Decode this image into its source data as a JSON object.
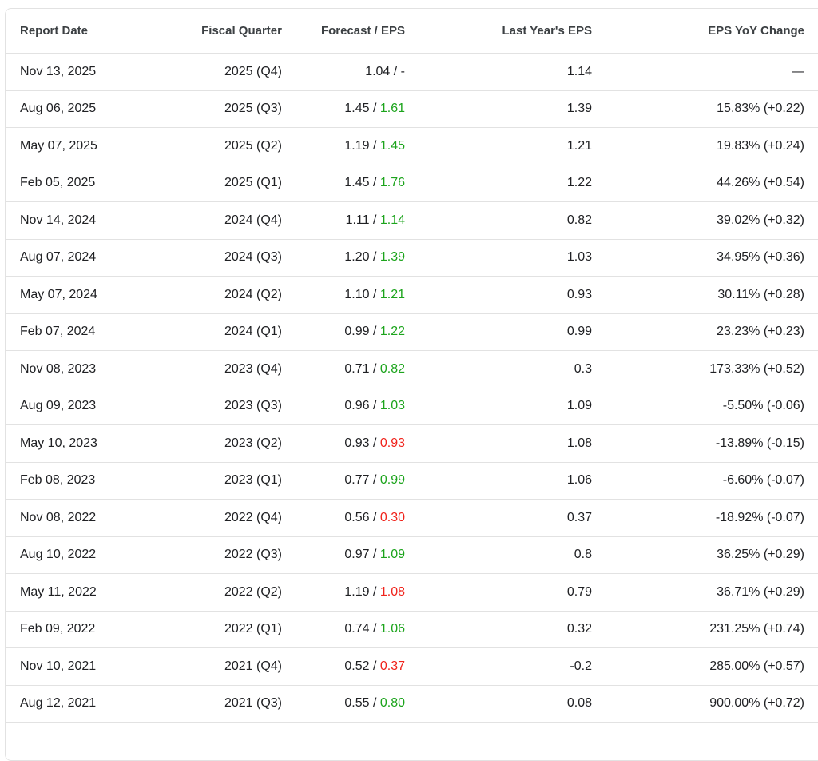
{
  "colors": {
    "beat": "#1ca41c",
    "miss": "#f0231b",
    "neutral": "#202124",
    "header_text": "#3c4043",
    "body_text": "#202124",
    "divider": "#e2e2e2",
    "background": "#ffffff"
  },
  "format": {
    "forecast_separator": " / "
  },
  "chart_data": {
    "type": "table",
    "columns": [
      "Report Date",
      "Fiscal Quarter",
      "Forecast / EPS",
      "Last Year's EPS",
      "EPS YoY Change"
    ],
    "rows": [
      {
        "report_date": "Nov 13, 2025",
        "fiscal_quarter": "2025 (Q4)",
        "forecast": "1.04",
        "eps": "-",
        "eps_status": "none",
        "last_year_eps": "1.14",
        "yoy_change": "—"
      },
      {
        "report_date": "Aug 06, 2025",
        "fiscal_quarter": "2025 (Q3)",
        "forecast": "1.45",
        "eps": "1.61",
        "eps_status": "beat",
        "last_year_eps": "1.39",
        "yoy_change": "15.83% (+0.22)"
      },
      {
        "report_date": "May 07, 2025",
        "fiscal_quarter": "2025 (Q2)",
        "forecast": "1.19",
        "eps": "1.45",
        "eps_status": "beat",
        "last_year_eps": "1.21",
        "yoy_change": "19.83% (+0.24)"
      },
      {
        "report_date": "Feb 05, 2025",
        "fiscal_quarter": "2025 (Q1)",
        "forecast": "1.45",
        "eps": "1.76",
        "eps_status": "beat",
        "last_year_eps": "1.22",
        "yoy_change": "44.26% (+0.54)"
      },
      {
        "report_date": "Nov 14, 2024",
        "fiscal_quarter": "2024 (Q4)",
        "forecast": "1.11",
        "eps": "1.14",
        "eps_status": "beat",
        "last_year_eps": "0.82",
        "yoy_change": "39.02% (+0.32)"
      },
      {
        "report_date": "Aug 07, 2024",
        "fiscal_quarter": "2024 (Q3)",
        "forecast": "1.20",
        "eps": "1.39",
        "eps_status": "beat",
        "last_year_eps": "1.03",
        "yoy_change": "34.95% (+0.36)"
      },
      {
        "report_date": "May 07, 2024",
        "fiscal_quarter": "2024 (Q2)",
        "forecast": "1.10",
        "eps": "1.21",
        "eps_status": "beat",
        "last_year_eps": "0.93",
        "yoy_change": "30.11% (+0.28)"
      },
      {
        "report_date": "Feb 07, 2024",
        "fiscal_quarter": "2024 (Q1)",
        "forecast": "0.99",
        "eps": "1.22",
        "eps_status": "beat",
        "last_year_eps": "0.99",
        "yoy_change": "23.23% (+0.23)"
      },
      {
        "report_date": "Nov 08, 2023",
        "fiscal_quarter": "2023 (Q4)",
        "forecast": "0.71",
        "eps": "0.82",
        "eps_status": "beat",
        "last_year_eps": "0.3",
        "yoy_change": "173.33% (+0.52)"
      },
      {
        "report_date": "Aug 09, 2023",
        "fiscal_quarter": "2023 (Q3)",
        "forecast": "0.96",
        "eps": "1.03",
        "eps_status": "beat",
        "last_year_eps": "1.09",
        "yoy_change": "-5.50% (-0.06)"
      },
      {
        "report_date": "May 10, 2023",
        "fiscal_quarter": "2023 (Q2)",
        "forecast": "0.93",
        "eps": "0.93",
        "eps_status": "miss",
        "last_year_eps": "1.08",
        "yoy_change": "-13.89% (-0.15)"
      },
      {
        "report_date": "Feb 08, 2023",
        "fiscal_quarter": "2023 (Q1)",
        "forecast": "0.77",
        "eps": "0.99",
        "eps_status": "beat",
        "last_year_eps": "1.06",
        "yoy_change": "-6.60% (-0.07)"
      },
      {
        "report_date": "Nov 08, 2022",
        "fiscal_quarter": "2022 (Q4)",
        "forecast": "0.56",
        "eps": "0.30",
        "eps_status": "miss",
        "last_year_eps": "0.37",
        "yoy_change": "-18.92% (-0.07)"
      },
      {
        "report_date": "Aug 10, 2022",
        "fiscal_quarter": "2022 (Q3)",
        "forecast": "0.97",
        "eps": "1.09",
        "eps_status": "beat",
        "last_year_eps": "0.8",
        "yoy_change": "36.25% (+0.29)"
      },
      {
        "report_date": "May 11, 2022",
        "fiscal_quarter": "2022 (Q2)",
        "forecast": "1.19",
        "eps": "1.08",
        "eps_status": "miss",
        "last_year_eps": "0.79",
        "yoy_change": "36.71% (+0.29)"
      },
      {
        "report_date": "Feb 09, 2022",
        "fiscal_quarter": "2022 (Q1)",
        "forecast": "0.74",
        "eps": "1.06",
        "eps_status": "beat",
        "last_year_eps": "0.32",
        "yoy_change": "231.25% (+0.74)"
      },
      {
        "report_date": "Nov 10, 2021",
        "fiscal_quarter": "2021 (Q4)",
        "forecast": "0.52",
        "eps": "0.37",
        "eps_status": "miss",
        "last_year_eps": "-0.2",
        "yoy_change": "285.00% (+0.57)"
      },
      {
        "report_date": "Aug 12, 2021",
        "fiscal_quarter": "2021 (Q3)",
        "forecast": "0.55",
        "eps": "0.80",
        "eps_status": "beat",
        "last_year_eps": "0.08",
        "yoy_change": "900.00% (+0.72)"
      }
    ]
  }
}
